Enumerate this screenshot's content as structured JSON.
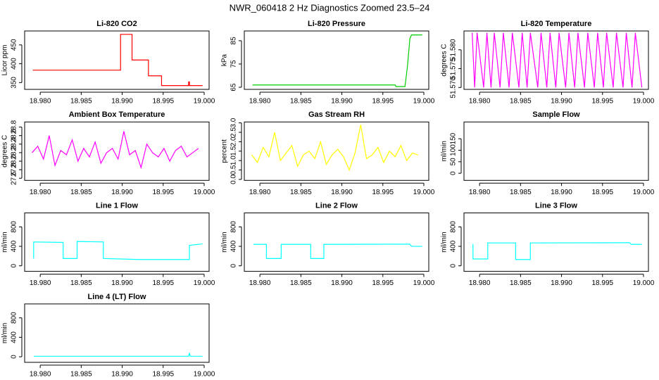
{
  "title": "NWR_060418  2 Hz Diagnostics Zoomed 23.5–24",
  "chart_data": [
    {
      "type": "line",
      "title": "Li-820 CO2",
      "ylabel": "Licor ppm",
      "color": "#ff0000",
      "xlim": [
        18.9781,
        19.0006
      ],
      "xticks": [
        {
          "value": 18.98,
          "label": "18.980"
        },
        {
          "value": 18.985,
          "label": "18.985"
        },
        {
          "value": 18.99,
          "label": "18.990"
        },
        {
          "value": 18.995,
          "label": "18.995"
        },
        {
          "value": 19.0,
          "label": "19.000"
        }
      ],
      "ylim": [
        332,
        487
      ],
      "yticks": [
        350,
        400,
        450
      ],
      "x": [
        18.9791,
        18.9898,
        18.9898,
        18.9912,
        18.9912,
        18.9932,
        18.9932,
        18.9948,
        18.9948,
        18.9981,
        18.9981,
        18.9982,
        18.9982,
        18.9998
      ],
      "values": [
        383,
        383,
        478,
        478,
        410,
        410,
        368,
        368,
        342,
        342,
        352,
        352,
        342,
        342
      ]
    },
    {
      "type": "line",
      "title": "Li-820 Pressure",
      "ylabel": "kPa",
      "color": "#00cd00",
      "xlim": [
        18.9781,
        19.0006
      ],
      "xticks": [
        {
          "value": 18.98,
          "label": "18.980"
        },
        {
          "value": 18.985,
          "label": "18.985"
        },
        {
          "value": 18.99,
          "label": "18.990"
        },
        {
          "value": 18.995,
          "label": "18.995"
        },
        {
          "value": 19.0,
          "label": "19.000"
        }
      ],
      "ylim": [
        64.1,
        89.2
      ],
      "yticks": [
        65,
        75,
        85
      ],
      "x": [
        18.9791,
        18.9965,
        18.9966,
        18.9977,
        18.998,
        18.9983,
        18.9985,
        18.9998
      ],
      "values": [
        66,
        66,
        65.3,
        65.3,
        74,
        86,
        87.5,
        87.5
      ]
    },
    {
      "type": "line",
      "title": "Li-820 Temperature",
      "ylabel": "degrees C",
      "color": "#ff00ff",
      "xlim": [
        18.9781,
        19.0006
      ],
      "xticks": [
        {
          "value": 18.98,
          "label": "18.980"
        },
        {
          "value": 18.985,
          "label": "18.985"
        },
        {
          "value": 18.99,
          "label": "18.990"
        },
        {
          "value": 18.995,
          "label": "18.995"
        },
        {
          "value": 19.0,
          "label": "19.000"
        }
      ],
      "ylim": [
        51.5695,
        51.585
      ],
      "yticks": [
        {
          "value": 51.57,
          "label": "51.570"
        },
        {
          "value": 51.575,
          "label": "51.575"
        },
        {
          "value": 51.58,
          "label": "51.580"
        }
      ],
      "x": [
        18.9791,
        18.9794,
        18.9797,
        18.9805,
        18.9809,
        18.9814,
        18.9818,
        18.9825,
        18.9829,
        18.9836,
        18.984,
        18.9848,
        18.9852,
        18.9858,
        18.9862,
        18.9871,
        18.9875,
        18.9882,
        18.9886,
        18.9893,
        18.9897,
        18.9905,
        18.9909,
        18.9916,
        18.992,
        18.9928,
        18.9932,
        18.994,
        18.9944,
        18.9951,
        18.9955,
        18.9963,
        18.9967,
        18.9975,
        18.9979,
        18.9986,
        18.999,
        18.9998
      ],
      "values": [
        51.5845,
        51.57,
        51.5845,
        51.57,
        51.5845,
        51.57,
        51.5845,
        51.57,
        51.5845,
        51.57,
        51.5845,
        51.57,
        51.5845,
        51.57,
        51.5845,
        51.57,
        51.5845,
        51.57,
        51.5845,
        51.57,
        51.5845,
        51.57,
        51.5845,
        51.57,
        51.5845,
        51.57,
        51.5845,
        51.57,
        51.5845,
        51.57,
        51.5845,
        51.57,
        51.5845,
        51.57,
        51.5845,
        51.57,
        51.5845,
        51.57
      ]
    },
    {
      "type": "line",
      "title": "Ambient Box Temperature",
      "ylabel": "degrees C",
      "color": "#ff00ff",
      "xlim": [
        18.9781,
        19.0006
      ],
      "xticks": [
        {
          "value": 18.98,
          "label": "18.980"
        },
        {
          "value": 18.985,
          "label": "18.985"
        },
        {
          "value": 18.99,
          "label": "18.990"
        },
        {
          "value": 18.995,
          "label": "18.995"
        },
        {
          "value": 19.0,
          "label": "19.000"
        }
      ],
      "ylim": [
        27.55,
        28.92
      ],
      "yticks": [
        27.6,
        27.8,
        {
          "value": 28.0,
          "label": "28.0"
        },
        28.2,
        28.4,
        28.6,
        28.8
      ],
      "x": [
        18.979,
        18.9797,
        18.9804,
        18.9811,
        18.9818,
        18.9825,
        18.9832,
        18.9839,
        18.9846,
        18.9853,
        18.986,
        18.9867,
        18.9874,
        18.9881,
        18.9888,
        18.9895,
        18.9902,
        18.9909,
        18.9916,
        18.9923,
        18.993,
        18.9937,
        18.9944,
        18.9951,
        18.9958,
        18.9965,
        18.9972,
        18.9979,
        18.9986,
        18.9993
      ],
      "values": [
        28.2,
        28.35,
        28.05,
        28.6,
        27.9,
        28.25,
        28.15,
        28.5,
        28.0,
        28.3,
        28.1,
        28.45,
        27.95,
        28.2,
        28.3,
        28.05,
        28.7,
        28.15,
        28.25,
        27.85,
        28.4,
        28.2,
        28.1,
        28.3,
        28.0,
        28.25,
        28.35,
        28.1,
        28.2,
        28.3
      ]
    },
    {
      "type": "line",
      "title": "Gas Stream RH",
      "ylabel": "percent",
      "color": "#ffff00",
      "xlim": [
        18.9781,
        19.0006
      ],
      "xticks": [
        {
          "value": 18.98,
          "label": "18.980"
        },
        {
          "value": 18.985,
          "label": "18.985"
        },
        {
          "value": 18.99,
          "label": "18.990"
        },
        {
          "value": 18.995,
          "label": "18.995"
        },
        {
          "value": 19.0,
          "label": "19.000"
        }
      ],
      "ylim": [
        -0.05,
        3.05
      ],
      "yticks": [
        {
          "value": 0,
          "label": "0.0"
        },
        0.5,
        {
          "value": 1,
          "label": "1.0"
        },
        1.5,
        {
          "value": 2,
          "label": "2.0"
        },
        2.5,
        {
          "value": 3,
          "label": "3.0"
        }
      ],
      "x": [
        18.979,
        18.9797,
        18.9804,
        18.9811,
        18.9818,
        18.9825,
        18.9832,
        18.9839,
        18.9846,
        18.9853,
        18.986,
        18.9867,
        18.9874,
        18.9881,
        18.9888,
        18.9895,
        18.9902,
        18.9909,
        18.9916,
        18.9923,
        18.993,
        18.9937,
        18.9944,
        18.9951,
        18.9958,
        18.9965,
        18.9972,
        18.9979,
        18.9986,
        18.9993
      ],
      "values": [
        1.3,
        0.9,
        1.7,
        1.2,
        2.5,
        1.0,
        1.4,
        1.8,
        0.7,
        1.3,
        1.5,
        1.1,
        2.0,
        0.8,
        1.3,
        1.6,
        1.2,
        0.5,
        1.4,
        2.9,
        1.1,
        1.3,
        1.7,
        0.9,
        1.5,
        1.2,
        1.8,
        1.0,
        1.4,
        1.3
      ]
    },
    {
      "type": "line",
      "title": "Sample Flow",
      "ylabel": "ml/min",
      "xlim": [
        18.9781,
        19.0006
      ],
      "xticks": [
        {
          "value": 18.98,
          "label": "18.980"
        },
        {
          "value": 18.985,
          "label": "18.985"
        },
        {
          "value": 18.99,
          "label": "18.990"
        },
        {
          "value": 18.995,
          "label": "18.995"
        },
        {
          "value": 19.0,
          "label": "19.000"
        }
      ],
      "ylim": [
        -31,
        223
      ],
      "yticks": [
        0,
        50,
        100,
        150
      ]
    },
    {
      "type": "line",
      "title": "Line 1 Flow",
      "ylabel": "ml/min",
      "color": "#00ffff",
      "xlim": [
        18.9781,
        19.0006
      ],
      "xticks": [
        {
          "value": 18.98,
          "label": "18.980"
        },
        {
          "value": 18.985,
          "label": "18.985"
        },
        {
          "value": 18.99,
          "label": "18.990"
        },
        {
          "value": 18.995,
          "label": "18.995"
        },
        {
          "value": 19.0,
          "label": "19.000"
        }
      ],
      "ylim": [
        -114,
        1086
      ],
      "yticks": [
        0,
        400,
        800
      ],
      "x": [
        18.9792,
        18.9792,
        18.9828,
        18.9828,
        18.9845,
        18.9845,
        18.9877,
        18.9877,
        18.992,
        18.9982,
        18.9982,
        18.9998
      ],
      "values": [
        150,
        490,
        480,
        150,
        150,
        500,
        490,
        150,
        130,
        130,
        420,
        450
      ]
    },
    {
      "type": "line",
      "title": "Line 2 Flow",
      "ylabel": "ml/min",
      "color": "#00ffff",
      "xlim": [
        18.9781,
        19.0006
      ],
      "xticks": [
        {
          "value": 18.98,
          "label": "18.980"
        },
        {
          "value": 18.985,
          "label": "18.985"
        },
        {
          "value": 18.99,
          "label": "18.990"
        },
        {
          "value": 18.995,
          "label": "18.995"
        },
        {
          "value": 19.0,
          "label": "19.000"
        }
      ],
      "ylim": [
        -114,
        1086
      ],
      "yticks": [
        0,
        400,
        800
      ],
      "x": [
        18.9792,
        18.9808,
        18.9808,
        18.9826,
        18.9826,
        18.9862,
        18.9862,
        18.9878,
        18.9878,
        18.9983,
        18.9985,
        18.9998
      ],
      "values": [
        440,
        440,
        150,
        150,
        440,
        440,
        150,
        150,
        440,
        445,
        400,
        400
      ]
    },
    {
      "type": "line",
      "title": "Line 3 Flow",
      "ylabel": "ml/min",
      "color": "#00ffff",
      "xlim": [
        18.9781,
        19.0006
      ],
      "xticks": [
        {
          "value": 18.98,
          "label": "18.980"
        },
        {
          "value": 18.985,
          "label": "18.985"
        },
        {
          "value": 18.99,
          "label": "18.990"
        },
        {
          "value": 18.995,
          "label": "18.995"
        },
        {
          "value": 19.0,
          "label": "19.000"
        }
      ],
      "ylim": [
        -114,
        1086
      ],
      "yticks": [
        0,
        400,
        800
      ],
      "x": [
        18.9792,
        18.9792,
        18.981,
        18.981,
        18.9844,
        18.9844,
        18.9862,
        18.9862,
        18.9983,
        18.9985,
        18.9998
      ],
      "values": [
        450,
        140,
        140,
        470,
        470,
        130,
        130,
        470,
        475,
        440,
        440
      ]
    },
    {
      "type": "line",
      "title": "Line 4 (LT) Flow",
      "ylabel": "ml/min",
      "color": "#00ffff",
      "xlim": [
        18.9781,
        19.0006
      ],
      "xticks": [
        {
          "value": 18.98,
          "label": "18.980"
        },
        {
          "value": 18.985,
          "label": "18.985"
        },
        {
          "value": 18.99,
          "label": "18.990"
        },
        {
          "value": 18.995,
          "label": "18.995"
        },
        {
          "value": 19.0,
          "label": "19.000"
        }
      ],
      "ylim": [
        -114,
        1086
      ],
      "yticks": [
        0,
        400,
        800
      ],
      "x": [
        18.9792,
        18.9981,
        18.9982,
        18.9983,
        18.9998
      ],
      "values": [
        10,
        10,
        80,
        12,
        10
      ]
    }
  ]
}
